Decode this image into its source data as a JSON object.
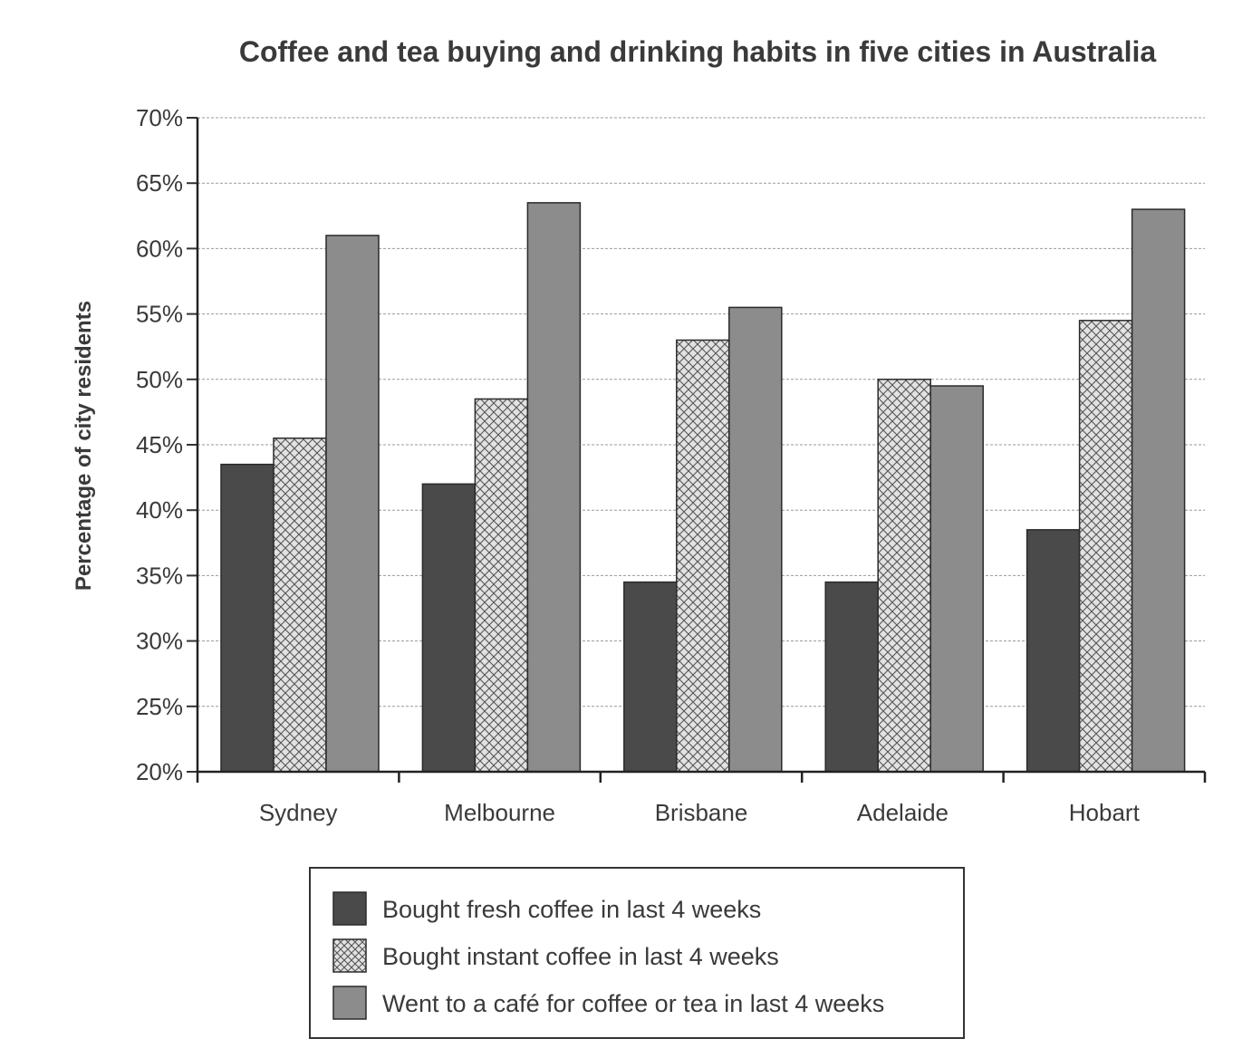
{
  "chart_data": {
    "type": "bar",
    "title": "Coffee and tea buying and drinking habits in five cities in Australia",
    "xlabel": "",
    "ylabel": "Percentage of city residents",
    "ylim": [
      20,
      70
    ],
    "yticks": [
      20,
      25,
      30,
      35,
      40,
      45,
      50,
      55,
      60,
      65,
      70
    ],
    "ytick_labels": [
      "20%",
      "25%",
      "30%",
      "35%",
      "40%",
      "45%",
      "50%",
      "55%",
      "60%",
      "65%",
      "70%"
    ],
    "grid": true,
    "legend_position": "bottom",
    "categories": [
      "Sydney",
      "Melbourne",
      "Brisbane",
      "Adelaide",
      "Hobart"
    ],
    "series": [
      {
        "name": "Bought fresh coffee in last 4 weeks",
        "pattern": "solid-dark",
        "color": "#4a4a4a",
        "values": [
          43.5,
          42,
          34.5,
          34.5,
          38.5
        ]
      },
      {
        "name": "Bought instant coffee in last 4 weeks",
        "pattern": "crosshatch",
        "color": "#d8d8d8",
        "values": [
          45.5,
          48.5,
          53,
          50,
          54.5
        ]
      },
      {
        "name": "Went to a café for coffee or tea in last 4 weeks",
        "pattern": "solid-medium",
        "color": "#8c8c8c",
        "values": [
          61,
          63.5,
          55.5,
          49.5,
          63
        ]
      }
    ]
  }
}
